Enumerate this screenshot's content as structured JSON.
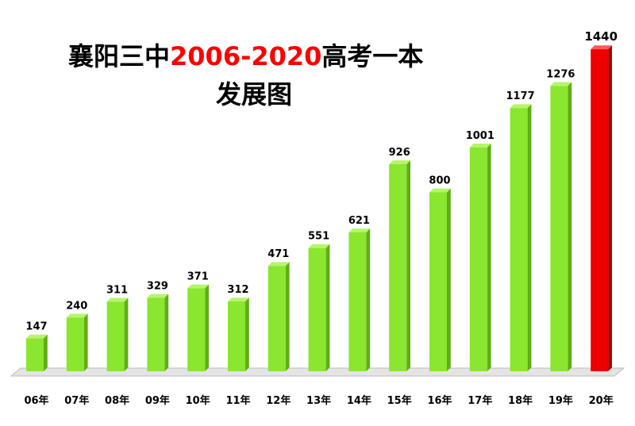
{
  "chart_data": {
    "type": "bar",
    "title": {
      "line1_prefix": "襄阳三中",
      "line1_highlight": "2006-2020",
      "line1_suffix": "高考一本",
      "line2": "发展图"
    },
    "categories": [
      "06年",
      "07年",
      "08年",
      "09年",
      "10年",
      "11年",
      "12年",
      "13年",
      "14年",
      "15年",
      "16年",
      "17年",
      "18年",
      "19年",
      "20年"
    ],
    "values": [
      147,
      240,
      311,
      329,
      371,
      312,
      471,
      551,
      621,
      926,
      800,
      1001,
      1177,
      1276,
      1440
    ],
    "highlight_index": 14,
    "xlabel": "",
    "ylabel": "",
    "ylim": [
      0,
      1500
    ],
    "grid": false,
    "legend": "none",
    "colors": {
      "bar": "#8ae62e",
      "bar_side": "#5fae14",
      "bar_top": "#b6f56a",
      "highlight": "#ee0000",
      "highlight_side": "#a80000",
      "highlight_top": "#ff5a5a",
      "title_highlight": "#ff0000",
      "floor": "#e4e4e4",
      "floor_edge": "#bdbdbd"
    }
  }
}
